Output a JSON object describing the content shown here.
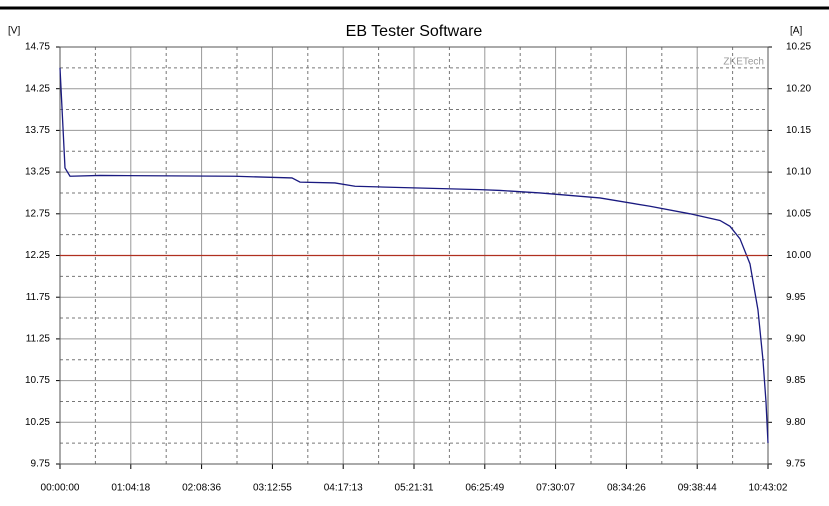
{
  "chart_data": {
    "type": "line",
    "title": "EB Tester Software",
    "ylabel": "[V]",
    "y2label": "[A]",
    "watermark": "ZKETech",
    "xlim": [
      0,
      38582
    ],
    "ylim": [
      9.75,
      14.75
    ],
    "y2lim": [
      9.75,
      10.25
    ],
    "grid": true,
    "xticks": [
      {
        "value": 0,
        "label": "00:00:00"
      },
      {
        "value": 3858,
        "label": "01:04:18"
      },
      {
        "value": 7716,
        "label": "02:08:36"
      },
      {
        "value": 11575,
        "label": "03:12:55"
      },
      {
        "value": 15433,
        "label": "04:17:13"
      },
      {
        "value": 19291,
        "label": "05:21:31"
      },
      {
        "value": 23149,
        "label": "06:25:49"
      },
      {
        "value": 27007,
        "label": "07:30:07"
      },
      {
        "value": 30866,
        "label": "08:34:26"
      },
      {
        "value": 34724,
        "label": "09:38:44"
      },
      {
        "value": 38582,
        "label": "10:43:02"
      }
    ],
    "yticks": [
      9.75,
      10.25,
      10.75,
      11.25,
      11.75,
      12.25,
      12.75,
      13.25,
      13.75,
      14.25,
      14.75
    ],
    "y2ticks": [
      9.75,
      {
        "value": 9.8,
        "label": "9.80"
      },
      9.85,
      {
        "value": 9.9,
        "label": "9.90"
      },
      9.95,
      {
        "value": 10,
        "label": "10.00"
      },
      10.05,
      {
        "value": 10.1,
        "label": "10.10"
      },
      10.15,
      {
        "value": 10.2,
        "label": "10.20"
      },
      10.25
    ],
    "series": [
      {
        "color": "#1a1a80",
        "x": [
          0,
          272,
          545,
          2180,
          9536,
          12642,
          13078,
          14985,
          16076,
          22888,
          23976,
          26157,
          29425,
          32151,
          34331,
          35965,
          36510,
          37055,
          37600,
          38034,
          38307,
          38471,
          38582
        ],
        "values": [
          14.5,
          13.3,
          13.2,
          13.21,
          13.2,
          13.18,
          13.13,
          13.12,
          13.08,
          13.04,
          13.03,
          13.0,
          12.94,
          12.84,
          12.75,
          12.67,
          12.6,
          12.45,
          12.15,
          11.6,
          11.0,
          10.5,
          10.0
        ]
      },
      {
        "color": "#b03020",
        "axis": "y2",
        "x": [
          0,
          38582
        ],
        "values": [
          10,
          10
        ]
      }
    ]
  }
}
